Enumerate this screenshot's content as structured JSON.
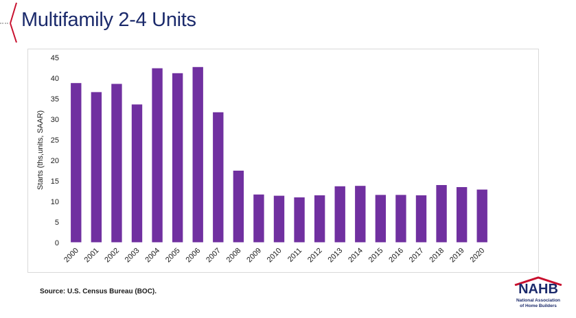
{
  "page": {
    "title": "Multifamily 2-4 Units",
    "source": "Source: U.S. Census Bureau (BOC)."
  },
  "logo": {
    "word": "NAHB",
    "subtitle_line1": "National Association",
    "subtitle_line2": "of Home Builders",
    "colors": {
      "navy": "#1b2a6b",
      "red": "#c8102e"
    }
  },
  "colors": {
    "bar": "#7030a0",
    "title": "#1b2a6b",
    "accent": "#c8102e"
  },
  "chart_data": {
    "type": "bar",
    "title": "",
    "xlabel": "",
    "ylabel": "Starts (ths,units, SAAR)",
    "categories": [
      "2000",
      "2001",
      "2002",
      "2003",
      "2004",
      "2005",
      "2006",
      "2007",
      "2008",
      "2009",
      "2010",
      "2011",
      "2012",
      "2013",
      "2014",
      "2015",
      "2016",
      "2017",
      "2018",
      "2019",
      "2020"
    ],
    "values": [
      38.8,
      36.6,
      38.6,
      33.6,
      42.4,
      41.2,
      42.7,
      31.7,
      17.5,
      11.7,
      11.4,
      11.0,
      11.5,
      13.7,
      13.8,
      11.6,
      11.6,
      11.5,
      14.0,
      13.5,
      12.9
    ],
    "ylim": [
      0,
      45
    ],
    "yticks": [
      0,
      5,
      10,
      15,
      20,
      25,
      30,
      35,
      40,
      45
    ],
    "grid": false,
    "legend": "none"
  }
}
